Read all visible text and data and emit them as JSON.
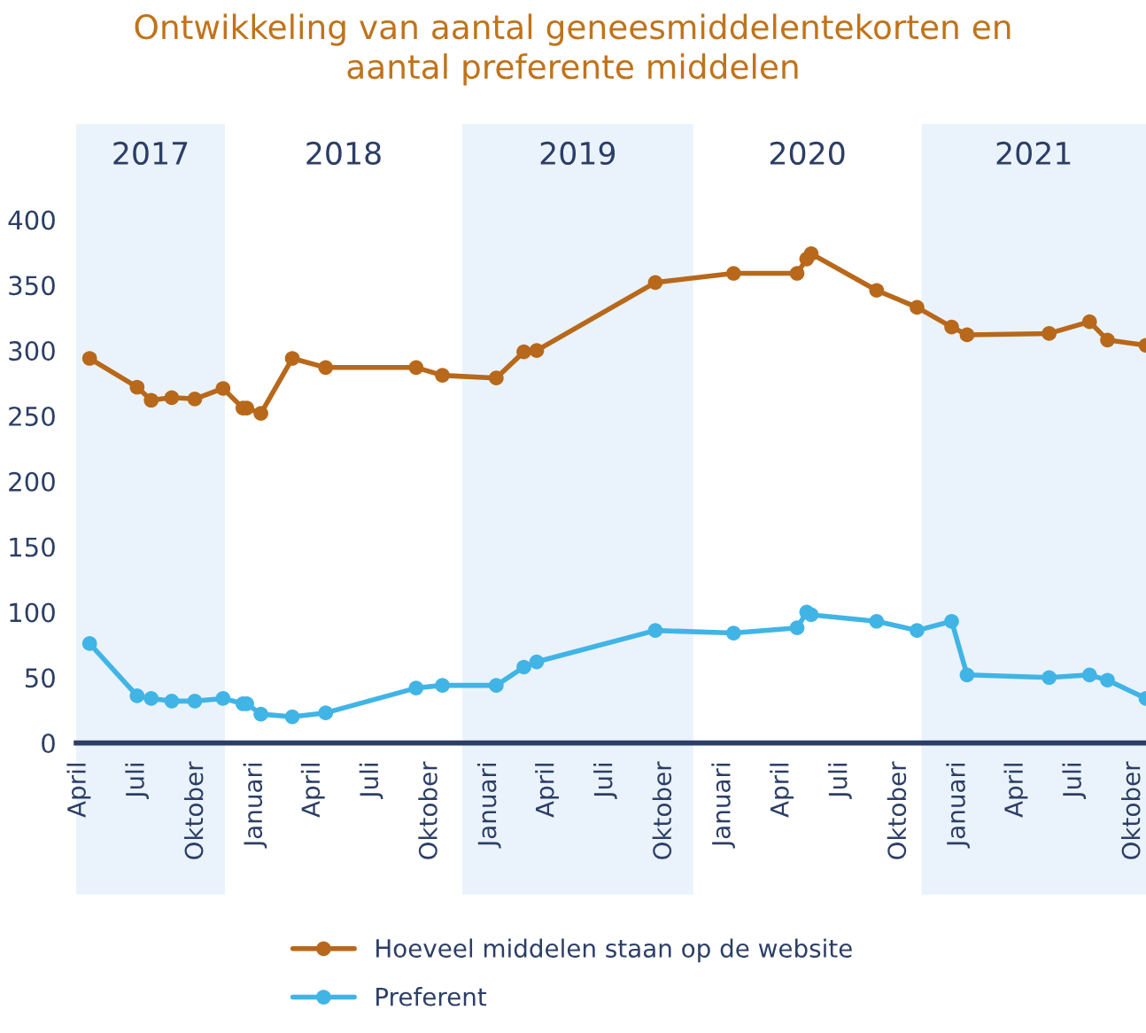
{
  "chart_data": {
    "type": "line",
    "title": "Ontwikkeling van aantal geneesmiddelentekorten en\naantal preferente middelen",
    "x": [
      "2017-04-18",
      "2017-07-01",
      "2017-07-23",
      "2017-08-24",
      "2017-09-29",
      "2017-11-12",
      "2017-12-13",
      "2017-12-19",
      "2018-01-10",
      "2018-02-28",
      "2018-04-21",
      "2018-09-09",
      "2018-10-20",
      "2019-01-12",
      "2019-02-24",
      "2019-03-16",
      "2019-09-17",
      "2020-01-17",
      "2020-04-25",
      "2020-05-10",
      "2020-05-17",
      "2020-08-27",
      "2020-10-29",
      "2020-12-22",
      "2021-01-15",
      "2021-05-23",
      "2021-07-25",
      "2021-08-22",
      "2021-10-21"
    ],
    "series": [
      {
        "name": "Hoeveel middelen staan op de website",
        "color": "#b8681a",
        "values": [
          294,
          272,
          262,
          264,
          263,
          271,
          256,
          256,
          252,
          294,
          287,
          287,
          281,
          279,
          299,
          300,
          352,
          359,
          359,
          370,
          374,
          346,
          333,
          318,
          312,
          313,
          322,
          308,
          304
        ]
      },
      {
        "name": "Preferent",
        "color": "#41b4e6",
        "values": [
          76,
          36,
          34,
          32,
          32,
          34,
          30,
          30,
          22,
          20,
          23,
          42,
          44,
          44,
          58,
          62,
          86,
          84,
          88,
          100,
          98,
          93,
          86,
          93,
          52,
          50,
          52,
          48,
          34
        ]
      }
    ],
    "xlim": [
      "2017-03-28",
      "2021-10-21"
    ],
    "xticks": [
      {
        "value": "2017-04-01",
        "label": "April"
      },
      {
        "value": "2017-07-01",
        "label": "Juli"
      },
      {
        "value": "2017-10-01",
        "label": "Oktober"
      },
      {
        "value": "2018-01-01",
        "label": "Januari"
      },
      {
        "value": "2018-04-01",
        "label": "April"
      },
      {
        "value": "2018-07-01",
        "label": "Juli"
      },
      {
        "value": "2018-10-01",
        "label": "Oktober"
      },
      {
        "value": "2019-01-01",
        "label": "Januari"
      },
      {
        "value": "2019-04-01",
        "label": "April"
      },
      {
        "value": "2019-07-01",
        "label": "Juli"
      },
      {
        "value": "2019-10-01",
        "label": "Oktober"
      },
      {
        "value": "2020-01-01",
        "label": "Januari"
      },
      {
        "value": "2020-04-01",
        "label": "April"
      },
      {
        "value": "2020-07-01",
        "label": "Juli"
      },
      {
        "value": "2020-10-01",
        "label": "Oktober"
      },
      {
        "value": "2021-01-01",
        "label": "Januari"
      },
      {
        "value": "2021-04-01",
        "label": "April"
      },
      {
        "value": "2021-07-01",
        "label": "Juli"
      },
      {
        "value": "2021-10-01",
        "label": "Oktober"
      }
    ],
    "ylim": [
      0,
      400
    ],
    "yticks": [
      0,
      50,
      100,
      150,
      200,
      250,
      300,
      350,
      400
    ],
    "bands": [
      {
        "axis": "x",
        "from": "2017-03-28",
        "to": "2017-11-15",
        "label": "2017",
        "color": "#eaf3fb"
      },
      {
        "axis": "x",
        "from": "2018-11-20",
        "to": "2019-11-15",
        "label": "2019",
        "color": "#eaf3fb"
      },
      {
        "axis": "x",
        "from": "2020-11-05",
        "to": "2021-10-21",
        "label": "2021",
        "color": "#eaf3fb"
      }
    ],
    "annotations": [
      "2018",
      "2020"
    ],
    "grid": false,
    "legend": "bottom",
    "marker": "circle",
    "line_style": "solid"
  }
}
